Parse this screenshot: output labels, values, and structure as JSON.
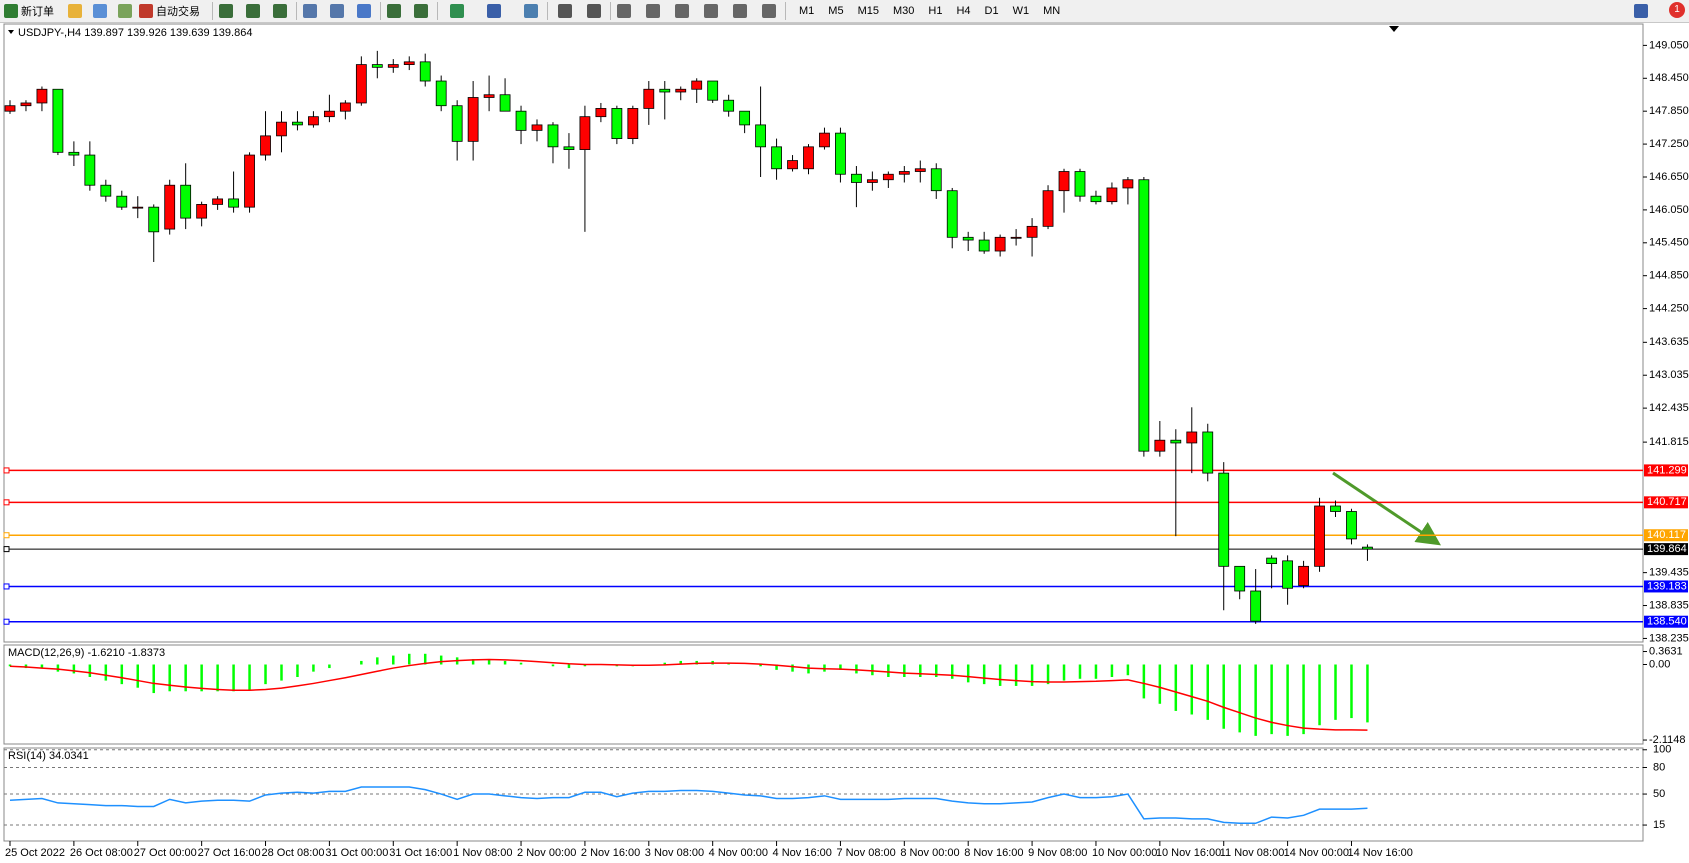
{
  "toolbar": {
    "new_order": "新订单",
    "auto_trading": "自动交易",
    "timeframes": [
      "M1",
      "M5",
      "M15",
      "M30",
      "H1",
      "H4",
      "D1",
      "W1",
      "MN"
    ],
    "notifications": 1
  },
  "chart_data": {
    "type": "candlestick",
    "title": "USDJPY-,H4  139.897 139.926 139.639 139.864",
    "categories": [
      "25 Oct 2022",
      null,
      null,
      null,
      "26 Oct 08:00",
      null,
      null,
      null,
      "27 Oct 00:00",
      null,
      null,
      null,
      "27 Oct 16:00",
      null,
      null,
      null,
      "28 Oct 08:00",
      null,
      null,
      null,
      "31 Oct 00:00",
      null,
      null,
      null,
      "31 Oct 16:00",
      null,
      null,
      null,
      "1 Nov 08:00",
      null,
      null,
      null,
      "2 Nov 00:00",
      null,
      null,
      null,
      "2 Nov 16:00",
      null,
      null,
      null,
      "3 Nov 08:00",
      null,
      null,
      null,
      "4 Nov 00:00",
      null,
      null,
      null,
      "4 Nov 16:00",
      null,
      null,
      null,
      "7 Nov 08:00",
      null,
      null,
      null,
      "8 Nov 00:00",
      null,
      null,
      null,
      "8 Nov 16:00",
      null,
      null,
      null,
      "9 Nov 08:00",
      null,
      null,
      null,
      "10 Nov 00:00",
      null,
      null,
      null,
      "10 Nov 16:00",
      null,
      null,
      null,
      "11 Nov 08:00",
      null,
      null,
      null,
      "14 Nov 00:00",
      null,
      null,
      null,
      "14 Nov 16:00",
      null
    ],
    "open": [
      147.85,
      147.95,
      148.0,
      148.25,
      147.1,
      147.05,
      146.5,
      146.3,
      146.1,
      146.1,
      145.7,
      146.5,
      145.9,
      146.15,
      146.25,
      146.1,
      147.05,
      147.4,
      147.65,
      147.6,
      147.75,
      147.85,
      148.0,
      148.7,
      148.65,
      148.7,
      148.75,
      148.4,
      147.95,
      147.3,
      148.1,
      148.15,
      147.85,
      147.5,
      147.6,
      147.2,
      147.15,
      147.75,
      147.9,
      147.35,
      147.9,
      148.25,
      148.2,
      148.25,
      148.4,
      148.05,
      147.85,
      147.6,
      147.2,
      146.8,
      146.8,
      147.2,
      147.45,
      146.7,
      146.55,
      146.6,
      146.7,
      146.75,
      146.8,
      146.4,
      145.55,
      145.5,
      145.3,
      145.55,
      145.55,
      145.75,
      146.4,
      146.75,
      146.3,
      146.2,
      146.45,
      146.6,
      141.65,
      141.85,
      141.8,
      142.0,
      141.25,
      139.55,
      139.1,
      139.7,
      139.65,
      139.2,
      139.55,
      140.65,
      140.55,
      139.9
    ],
    "high": [
      148.05,
      148.05,
      148.3,
      148.25,
      147.3,
      147.3,
      146.6,
      146.4,
      146.3,
      146.15,
      146.6,
      146.9,
      146.2,
      146.3,
      146.75,
      147.1,
      147.85,
      147.85,
      147.85,
      147.85,
      148.15,
      148.05,
      148.85,
      148.95,
      148.8,
      148.85,
      148.9,
      148.5,
      148.05,
      148.4,
      148.5,
      148.45,
      147.95,
      147.7,
      147.65,
      147.45,
      147.95,
      148.0,
      147.95,
      147.95,
      148.4,
      148.4,
      148.3,
      148.45,
      148.4,
      148.15,
      147.85,
      148.3,
      147.35,
      147.05,
      147.25,
      147.55,
      147.55,
      146.85,
      146.75,
      146.75,
      146.85,
      146.95,
      146.9,
      146.45,
      145.65,
      145.65,
      145.6,
      145.7,
      145.9,
      146.5,
      146.8,
      146.8,
      146.4,
      146.55,
      146.65,
      146.65,
      142.2,
      142.05,
      142.45,
      142.15,
      141.45,
      139.55,
      139.5,
      139.75,
      139.75,
      139.65,
      140.8,
      140.75,
      140.6,
      139.95
    ],
    "low": [
      147.8,
      147.85,
      147.85,
      147.05,
      146.85,
      146.4,
      146.2,
      146.05,
      145.9,
      145.1,
      145.6,
      145.7,
      145.75,
      146.05,
      146.0,
      146.0,
      146.95,
      147.1,
      147.5,
      147.55,
      147.65,
      147.7,
      147.95,
      148.45,
      148.55,
      148.6,
      148.3,
      147.85,
      146.95,
      146.95,
      147.85,
      147.85,
      147.25,
      147.3,
      146.9,
      146.8,
      145.65,
      147.65,
      147.25,
      147.25,
      147.6,
      147.7,
      148.05,
      148.0,
      148.0,
      147.75,
      147.45,
      146.65,
      146.6,
      146.75,
      146.7,
      147.15,
      146.55,
      146.1,
      146.4,
      146.45,
      146.55,
      146.55,
      146.25,
      145.35,
      145.3,
      145.25,
      145.2,
      145.4,
      145.2,
      145.7,
      146.0,
      146.2,
      146.15,
      146.15,
      146.15,
      141.55,
      141.55,
      140.1,
      141.25,
      141.1,
      138.75,
      138.95,
      138.5,
      139.15,
      138.85,
      139.15,
      139.45,
      140.45,
      139.95,
      139.65
    ],
    "close": [
      147.95,
      148.0,
      148.25,
      147.1,
      147.05,
      146.5,
      146.3,
      146.1,
      146.1,
      145.65,
      146.5,
      145.9,
      146.15,
      146.25,
      146.1,
      147.05,
      147.4,
      147.65,
      147.6,
      147.75,
      147.85,
      148.0,
      148.7,
      148.65,
      148.7,
      148.75,
      148.4,
      147.95,
      147.3,
      148.1,
      148.15,
      147.85,
      147.5,
      147.6,
      147.2,
      147.15,
      147.75,
      147.9,
      147.35,
      147.9,
      148.25,
      148.2,
      148.25,
      148.4,
      148.05,
      147.85,
      147.6,
      147.2,
      146.8,
      146.95,
      147.2,
      147.45,
      146.7,
      146.55,
      146.6,
      146.7,
      146.75,
      146.8,
      146.4,
      145.55,
      145.5,
      145.3,
      145.55,
      145.55,
      145.75,
      146.4,
      146.75,
      146.3,
      146.2,
      146.45,
      146.6,
      141.65,
      141.85,
      141.8,
      142.0,
      141.25,
      139.55,
      139.1,
      138.55,
      139.6,
      139.15,
      139.55,
      140.65,
      140.55,
      140.05,
      139.864
    ],
    "up_color": "#ff0000",
    "down_color": "#00ff00",
    "ylim": [
      138.17,
      149.44
    ],
    "yticks": [
      {
        "value": 149.05,
        "label": "149.050"
      },
      {
        "value": 148.45,
        "label": "148.450"
      },
      {
        "value": 147.85,
        "label": "147.850"
      },
      {
        "value": 147.25,
        "label": "147.250"
      },
      {
        "value": 146.65,
        "label": "146.650"
      },
      {
        "value": 146.05,
        "label": "146.050"
      },
      {
        "value": 145.45,
        "label": "145.450"
      },
      {
        "value": 144.85,
        "label": "144.850"
      },
      {
        "value": 144.25,
        "label": "144.250"
      },
      143.635,
      143.035,
      142.435,
      141.815,
      139.435,
      138.835,
      138.235
    ],
    "lines": [
      {
        "value": 141.299,
        "color": "#ff0000"
      },
      {
        "value": 140.717,
        "color": "#ff0000"
      },
      {
        "value": 140.117,
        "color": "#ffa500"
      },
      {
        "value": 139.864,
        "color": "#000000"
      },
      {
        "value": 139.183,
        "color": "#0000ff"
      },
      {
        "value": 138.54,
        "label": "138.540",
        "color": "#0000ff"
      }
    ],
    "macd": {
      "title": "MACD(12,26,9) -1.6210 -1.8373",
      "ylim": [
        -2.226,
        0.546
      ],
      "yticks": [
        0.3631,
        {
          "value": 0,
          "label": "0.00"
        },
        -2.1148
      ],
      "histogram_color": "#00ff00",
      "signal_color": "#ff0000",
      "histogram": [
        -0.05,
        -0.1,
        -0.1,
        -0.2,
        -0.25,
        -0.35,
        -0.45,
        -0.55,
        -0.65,
        -0.8,
        -0.75,
        -0.75,
        -0.75,
        -0.75,
        -0.75,
        -0.7,
        -0.55,
        -0.45,
        -0.35,
        -0.2,
        -0.1,
        0.0,
        0.1,
        0.2,
        0.25,
        0.3,
        0.3,
        0.25,
        0.2,
        0.15,
        0.15,
        0.1,
        0.05,
        0.0,
        -0.05,
        -0.1,
        -0.05,
        0.0,
        -0.05,
        -0.05,
        0.0,
        0.05,
        0.1,
        0.1,
        0.1,
        0.05,
        0.0,
        -0.05,
        -0.15,
        -0.2,
        -0.25,
        -0.2,
        -0.15,
        -0.25,
        -0.3,
        -0.35,
        -0.35,
        -0.35,
        -0.35,
        -0.4,
        -0.5,
        -0.55,
        -0.6,
        -0.6,
        -0.6,
        -0.55,
        -0.45,
        -0.4,
        -0.4,
        -0.35,
        -0.3,
        -0.95,
        -1.1,
        -1.3,
        -1.4,
        -1.55,
        -1.8,
        -1.9,
        -2.0,
        -1.95,
        -2.0,
        -1.95,
        -1.7,
        -1.55,
        -1.5,
        -1.621
      ],
      "signal": [
        -0.05,
        -0.07,
        -0.1,
        -0.13,
        -0.18,
        -0.23,
        -0.3,
        -0.37,
        -0.45,
        -0.53,
        -0.58,
        -0.63,
        -0.67,
        -0.7,
        -0.72,
        -0.72,
        -0.7,
        -0.66,
        -0.6,
        -0.53,
        -0.45,
        -0.37,
        -0.28,
        -0.19,
        -0.1,
        -0.03,
        0.03,
        0.08,
        0.11,
        0.13,
        0.14,
        0.13,
        0.11,
        0.08,
        0.05,
        0.02,
        0.0,
        0.0,
        -0.01,
        -0.02,
        -0.02,
        -0.01,
        0.01,
        0.03,
        0.04,
        0.04,
        0.03,
        0.01,
        -0.02,
        -0.06,
        -0.1,
        -0.12,
        -0.13,
        -0.15,
        -0.18,
        -0.21,
        -0.24,
        -0.26,
        -0.28,
        -0.3,
        -0.34,
        -0.38,
        -0.42,
        -0.45,
        -0.48,
        -0.49,
        -0.49,
        -0.48,
        -0.47,
        -0.45,
        -0.43,
        -0.53,
        -0.64,
        -0.77,
        -0.9,
        -1.03,
        -1.2,
        -1.35,
        -1.5,
        -1.62,
        -1.71,
        -1.78,
        -1.81,
        -1.83,
        -1.83,
        -1.8373
      ]
    },
    "rsi": {
      "title": "RSI(14) 34.0341",
      "ylim": [
        -3,
        102
      ],
      "yticks": [
        100,
        80,
        50,
        15
      ],
      "color": "#1e90ff",
      "values": [
        43,
        44,
        45,
        40,
        39,
        38,
        37,
        37,
        36,
        36,
        44,
        40,
        42,
        43,
        43,
        42,
        49,
        51,
        52,
        51,
        53,
        53,
        58,
        58,
        58,
        58,
        55,
        50,
        44,
        50,
        50,
        48,
        46,
        45,
        46,
        46,
        52,
        52,
        47,
        51,
        53,
        53,
        54,
        54,
        53,
        51,
        49,
        48,
        45,
        45,
        46,
        48,
        44,
        44,
        44,
        44,
        45,
        45,
        45,
        42,
        40,
        39,
        39,
        40,
        41,
        46,
        50,
        46,
        46,
        47,
        50,
        22,
        23,
        23,
        22,
        22,
        18,
        17,
        17,
        24,
        23,
        26,
        33,
        33,
        33,
        34.0341
      ]
    }
  }
}
